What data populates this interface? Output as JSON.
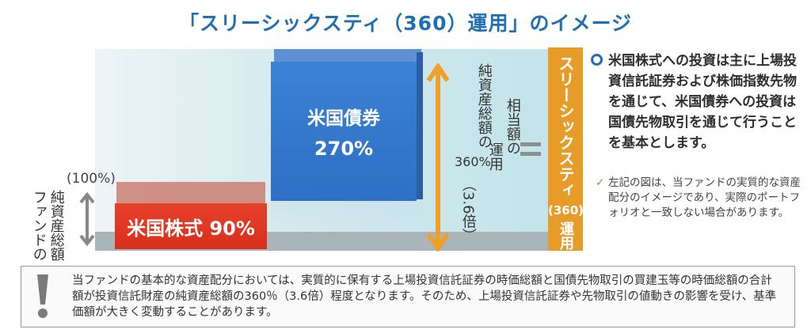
{
  "title": "「スリーシックスティ（360）運用」のイメージ",
  "left_label": "純資産総額\nファンドの",
  "left_label_col1": "純資産総額",
  "left_label_col2": "ファンドの",
  "pct100": "(100%)",
  "stock_bar": {
    "label": "米国株式 90%",
    "color": "#e33a24"
  },
  "bond_bar": {
    "label": "米国債券",
    "value": "270%",
    "color": "#3a7fd3"
  },
  "total_label_col1": "純資産総額の",
  "total_label_col2": "360%",
  "total_label_col3": "（3.6倍）",
  "equiv_label_col1": "相当額の",
  "equiv_label_col2": "運用",
  "orange_box": {
    "label": "スリーシックスティ",
    "num": "(360)",
    "unit": "運用",
    "color": "#e89c28"
  },
  "bullet_text": "米国株式への投資は主に上場投資信託証券および株価指数先物を通じて、米国債券への投資は国債先物取引を通じて行うことを基本とします。",
  "note_text": "左記の図は、当ファンドの実質的な資産配分のイメージであり、実際のポートフォリオと一致しない場合があります。",
  "warning_text": "当ファンドの基本的な資産配分においては、実質的に保有する上場投資信託証券の時価総額と国債先物取引の買建玉等の時価総額の合計額が投資信託財産の純資産総額の360％（3.6倍）程度となります。そのため、上場投資信託証券や先物取引の値動きの影響を受け、基準価額が大きく変動することがあります。",
  "icons": {
    "warning": "exclamation-icon",
    "bullet": "ring-bullet-icon",
    "check": "check-icon"
  }
}
